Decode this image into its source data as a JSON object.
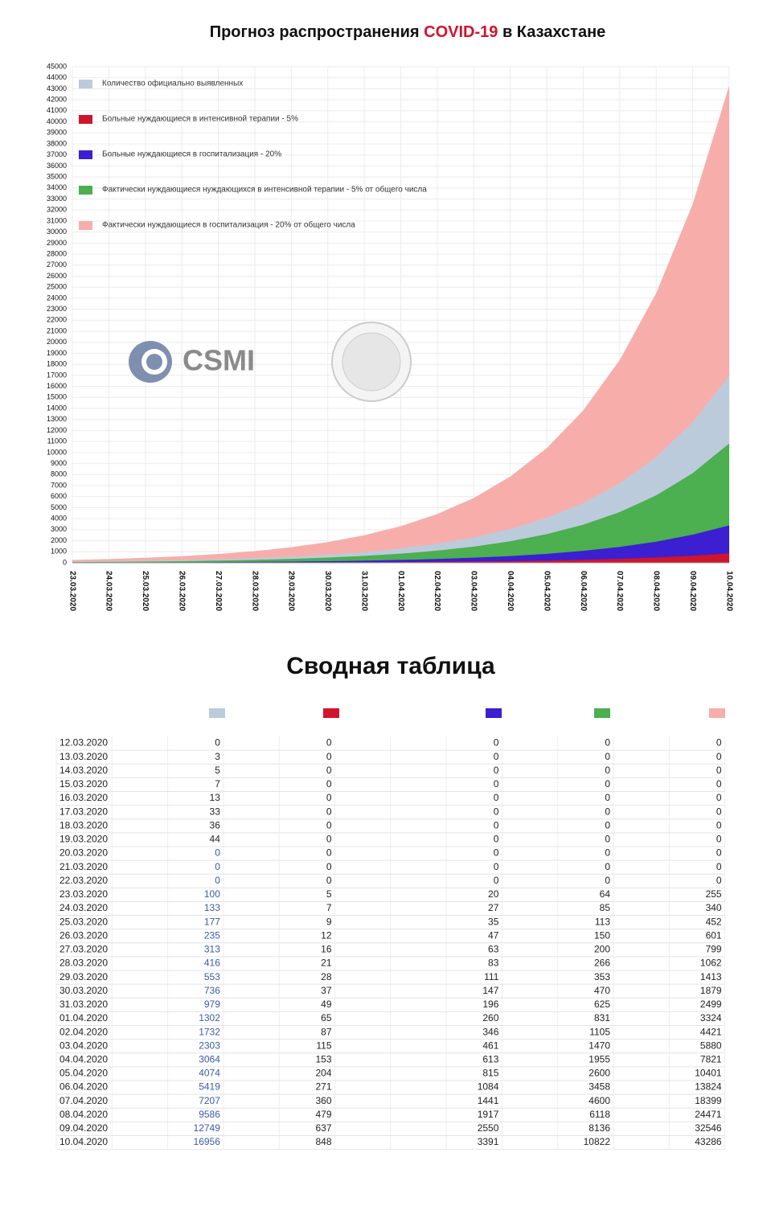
{
  "chart_data": {
    "type": "area",
    "title_start": "Прогноз распространения ",
    "title_highlight": "COVID-19",
    "title_end": " в Казахстане",
    "logo": "CSMI",
    "categories": [
      "23.03.2020",
      "24.03.2020",
      "25.03.2020",
      "26.03.2020",
      "27.03.2020",
      "28.03.2020",
      "29.03.2020",
      "30.03.2020",
      "31.03.2020",
      "01.04.2020",
      "02.04.2020",
      "03.04.2020",
      "04.04.2020",
      "05.04.2020",
      "06.04.2020",
      "07.04.2020",
      "08.04.2020",
      "09.04.2020",
      "10.04.2020"
    ],
    "series": [
      {
        "name": "Количество официально выявленных",
        "color": "#bccbdb",
        "values": [
          100,
          133,
          177,
          235,
          313,
          416,
          553,
          736,
          979,
          1302,
          1732,
          2303,
          3064,
          4074,
          5419,
          7207,
          9586,
          12749,
          16956
        ]
      },
      {
        "name": "Больные нуждающиеся в интенсивной терапии - 5%",
        "color": "#d0142c",
        "values": [
          5,
          7,
          9,
          12,
          16,
          21,
          28,
          37,
          49,
          65,
          87,
          115,
          153,
          204,
          271,
          360,
          479,
          637,
          848
        ]
      },
      {
        "name": "Больные нуждающиеся в госпитализация - 20%",
        "color": "#3b1fd0",
        "values": [
          20,
          27,
          35,
          47,
          63,
          83,
          111,
          147,
          196,
          260,
          346,
          461,
          613,
          815,
          1084,
          1441,
          1917,
          2550,
          3391
        ]
      },
      {
        "name": "Фактически нуждающиеся нуждающихся в интенсивной терапии - 5% от общего числа",
        "color": "#4caf50",
        "values": [
          64,
          85,
          113,
          150,
          200,
          266,
          353,
          470,
          625,
          831,
          1105,
          1470,
          1955,
          2600,
          3458,
          4600,
          6118,
          8136,
          10822
        ]
      },
      {
        "name": "Фактически нуждающиеся в госпитализация - 20% от общего числа",
        "color": "#f7aeab",
        "values": [
          255,
          340,
          452,
          601,
          799,
          1062,
          1413,
          1879,
          2499,
          3324,
          4421,
          5880,
          7821,
          10401,
          13824,
          18399,
          24471,
          32546,
          43286
        ]
      }
    ],
    "ylim": [
      0,
      45000
    ],
    "yticks": [
      0,
      1000,
      2000,
      3000,
      4000,
      5000,
      6000,
      7000,
      8000,
      9000,
      10000,
      11000,
      12000,
      13000,
      14000,
      15000,
      16000,
      17000,
      18000,
      19000,
      20000,
      21000,
      22000,
      23000,
      24000,
      25000,
      26000,
      27000,
      28000,
      29000,
      30000,
      31000,
      32000,
      33000,
      34000,
      35000,
      36000,
      37000,
      38000,
      39000,
      40000,
      41000,
      42000,
      43000,
      44000,
      45000
    ],
    "grid": true,
    "legend": "upper left"
  },
  "table": {
    "title": "Сводная таблица",
    "rows": [
      [
        "12.03.2020",
        0,
        0,
        0,
        0,
        0
      ],
      [
        "13.03.2020",
        3,
        0,
        0,
        0,
        0
      ],
      [
        "14.03.2020",
        5,
        0,
        0,
        0,
        0
      ],
      [
        "15.03.2020",
        7,
        0,
        0,
        0,
        0
      ],
      [
        "16.03.2020",
        13,
        0,
        0,
        0,
        0
      ],
      [
        "17.03.2020",
        33,
        0,
        0,
        0,
        0
      ],
      [
        "18.03.2020",
        36,
        0,
        0,
        0,
        0
      ],
      [
        "19.03.2020",
        44,
        0,
        0,
        0,
        0
      ],
      [
        "20.03.2020",
        0,
        0,
        0,
        0,
        0
      ],
      [
        "21.03.2020",
        0,
        0,
        0,
        0,
        0
      ],
      [
        "22.03.2020",
        0,
        0,
        0,
        0,
        0
      ],
      [
        "23.03.2020",
        100,
        5,
        20,
        64,
        255
      ],
      [
        "24.03.2020",
        133,
        7,
        27,
        85,
        340
      ],
      [
        "25.03.2020",
        177,
        9,
        35,
        113,
        452
      ],
      [
        "26.03.2020",
        235,
        12,
        47,
        150,
        601
      ],
      [
        "27.03.2020",
        313,
        16,
        63,
        200,
        799
      ],
      [
        "28.03.2020",
        416,
        21,
        83,
        266,
        1062
      ],
      [
        "29.03.2020",
        553,
        28,
        111,
        353,
        1413
      ],
      [
        "30.03.2020",
        736,
        37,
        147,
        470,
        1879
      ],
      [
        "31.03.2020",
        979,
        49,
        196,
        625,
        2499
      ],
      [
        "01.04.2020",
        1302,
        65,
        260,
        831,
        3324
      ],
      [
        "02.04.2020",
        1732,
        87,
        346,
        1105,
        4421
      ],
      [
        "03.04.2020",
        2303,
        115,
        461,
        1470,
        5880
      ],
      [
        "04.04.2020",
        3064,
        153,
        613,
        1955,
        7821
      ],
      [
        "05.04.2020",
        4074,
        204,
        815,
        2600,
        10401
      ],
      [
        "06.04.2020",
        5419,
        271,
        1084,
        3458,
        13824
      ],
      [
        "07.04.2020",
        7207,
        360,
        1441,
        4600,
        18399
      ],
      [
        "08.04.2020",
        9586,
        479,
        1917,
        6118,
        24471
      ],
      [
        "09.04.2020",
        12749,
        637,
        2550,
        8136,
        32546
      ],
      [
        "10.04.2020",
        16956,
        848,
        3391,
        10822,
        43286
      ]
    ]
  }
}
